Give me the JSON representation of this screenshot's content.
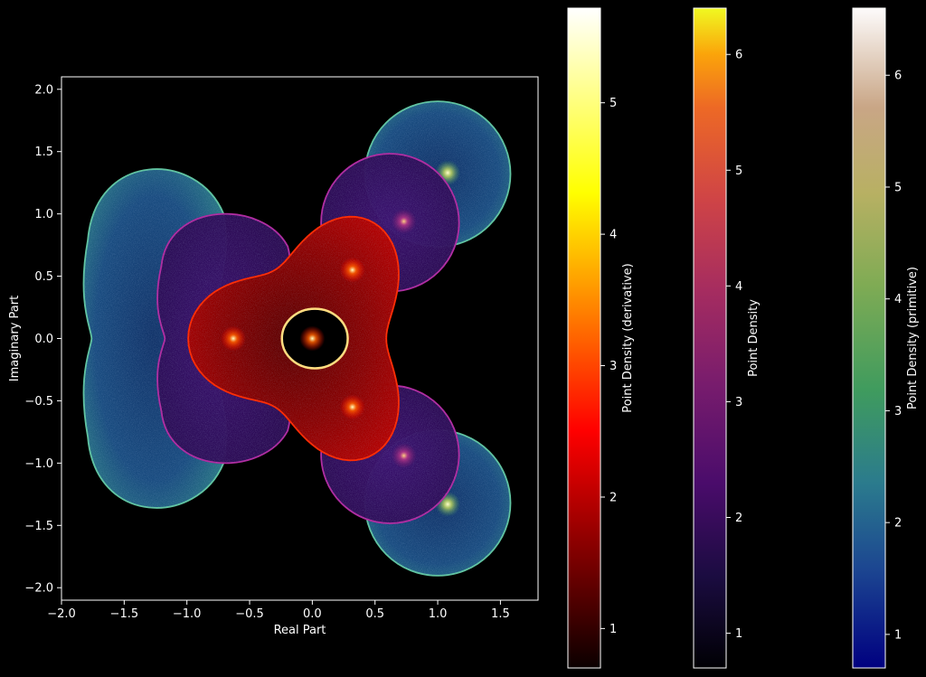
{
  "chart_data": {
    "type": "scatter",
    "description_role": "density scatter of complex polynomial roots",
    "xlabel": "Real Part",
    "ylabel": "Imaginary Part",
    "xlim": [
      -2.0,
      1.8
    ],
    "ylim": [
      -2.1,
      2.1
    ],
    "xticks": [
      -2.0,
      -1.5,
      -1.0,
      -0.5,
      0.0,
      0.5,
      1.0,
      1.5
    ],
    "xtick_labels": [
      "−2.0",
      "−1.5",
      "−1.0",
      "−0.5",
      "0.0",
      "0.5",
      "1.0",
      "1.5"
    ],
    "yticks": [
      2.0,
      1.5,
      1.0,
      0.5,
      0.0,
      -0.5,
      -1.0,
      -1.5,
      -2.0
    ],
    "ytick_labels": [
      "2.0",
      "1.5",
      "1.0",
      "0.5",
      "0.0",
      "−0.5",
      "−1.0",
      "−1.5",
      "−2.0"
    ],
    "grid": false,
    "series": [
      {
        "name": "primitive",
        "colormap": "gist_earth",
        "regions": [
          {
            "shape": "left-lobe",
            "cx": -1.25,
            "cy": 0.0,
            "rx": 0.6,
            "ry": 1.4
          },
          {
            "shape": "disc",
            "cx": 1.0,
            "cy": 1.32,
            "r": 0.58
          },
          {
            "shape": "disc",
            "cx": 1.0,
            "cy": -1.32,
            "r": 0.58
          }
        ],
        "hotspots": [
          {
            "x": 1.08,
            "y": 1.33
          },
          {
            "x": 1.08,
            "y": -1.33
          }
        ]
      },
      {
        "name": "density",
        "colormap": "inferno",
        "regions": [
          {
            "shape": "left-lobe",
            "cx": -0.7,
            "cy": 0.0,
            "rx": 0.56,
            "ry": 1.03
          },
          {
            "shape": "disc",
            "cx": 0.62,
            "cy": 0.93,
            "r": 0.55
          },
          {
            "shape": "disc",
            "cx": 0.62,
            "cy": -0.93,
            "r": 0.55
          }
        ],
        "hotspots": [
          {
            "x": 0.73,
            "y": 0.94
          },
          {
            "x": 0.73,
            "y": -0.94
          }
        ]
      },
      {
        "name": "derivative",
        "colormap": "hot",
        "regions": [
          {
            "shape": "rounded-triangle",
            "cx": 0.0,
            "cy": 0.0
          }
        ],
        "hole": {
          "cx": 0.02,
          "cy": 0.0,
          "r": 0.25
        },
        "hotspots": [
          {
            "x": -0.63,
            "y": 0.0
          },
          {
            "x": 0.32,
            "y": 0.55
          },
          {
            "x": 0.32,
            "y": -0.55
          },
          {
            "x": 0.0,
            "y": 0.0
          }
        ]
      }
    ],
    "colorbars": [
      {
        "name": "derivative",
        "label": "Point Density (derivative)",
        "colormap": "hot",
        "range": [
          0.7,
          5.72
        ],
        "ticks": [
          1,
          2,
          3,
          4,
          5
        ],
        "tick_labels": [
          "1",
          "2",
          "3",
          "4",
          "5"
        ]
      },
      {
        "name": "density",
        "label": "Point Density",
        "colormap": "inferno",
        "range": [
          0.7,
          6.4
        ],
        "ticks": [
          1,
          2,
          3,
          4,
          5,
          6
        ],
        "tick_labels": [
          "1",
          "2",
          "3",
          "4",
          "5",
          "6"
        ]
      },
      {
        "name": "primitive",
        "label": "Point Density (primitive)",
        "colormap": "gist_earth",
        "range": [
          0.7,
          6.6
        ],
        "ticks": [
          1,
          2,
          3,
          4,
          5,
          6
        ],
        "tick_labels": [
          "1",
          "2",
          "3",
          "4",
          "5",
          "6"
        ]
      }
    ]
  }
}
